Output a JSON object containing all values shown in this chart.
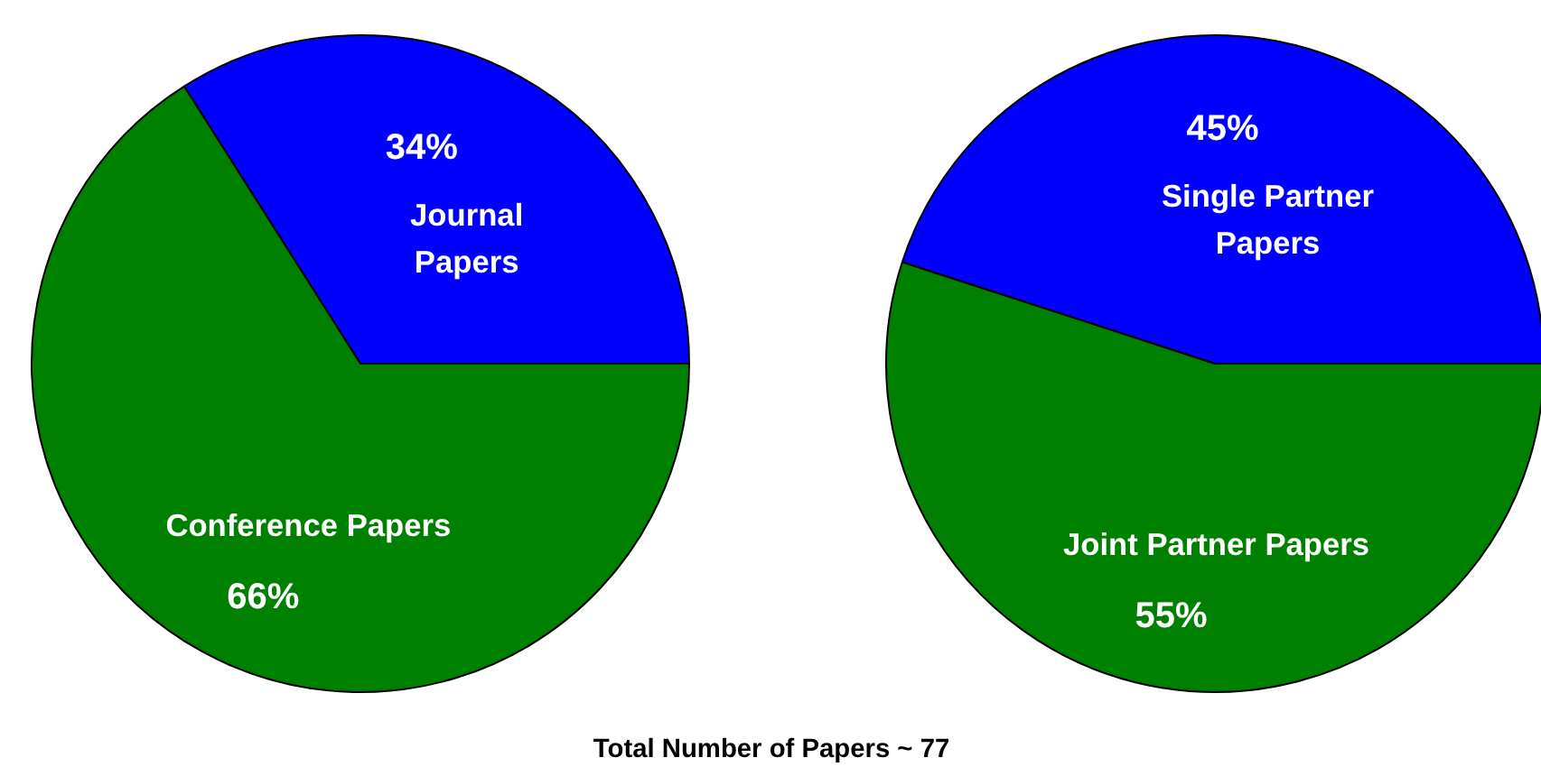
{
  "chart_data": [
    {
      "type": "pie",
      "categories": [
        "Journal\nPapers",
        "Conference Papers"
      ],
      "values": [
        34,
        66
      ],
      "colors": [
        "#0000ff",
        "#008000"
      ],
      "value_labels": [
        "34%",
        "66%"
      ]
    },
    {
      "type": "pie",
      "categories": [
        "Single Partner\nPapers",
        "Joint Partner Papers"
      ],
      "values": [
        45,
        55
      ],
      "colors": [
        "#0000ff",
        "#008000"
      ],
      "value_labels": [
        "45%",
        "55%"
      ],
      "annotations": [
        "Total Number of Papers ~ 77"
      ]
    }
  ]
}
